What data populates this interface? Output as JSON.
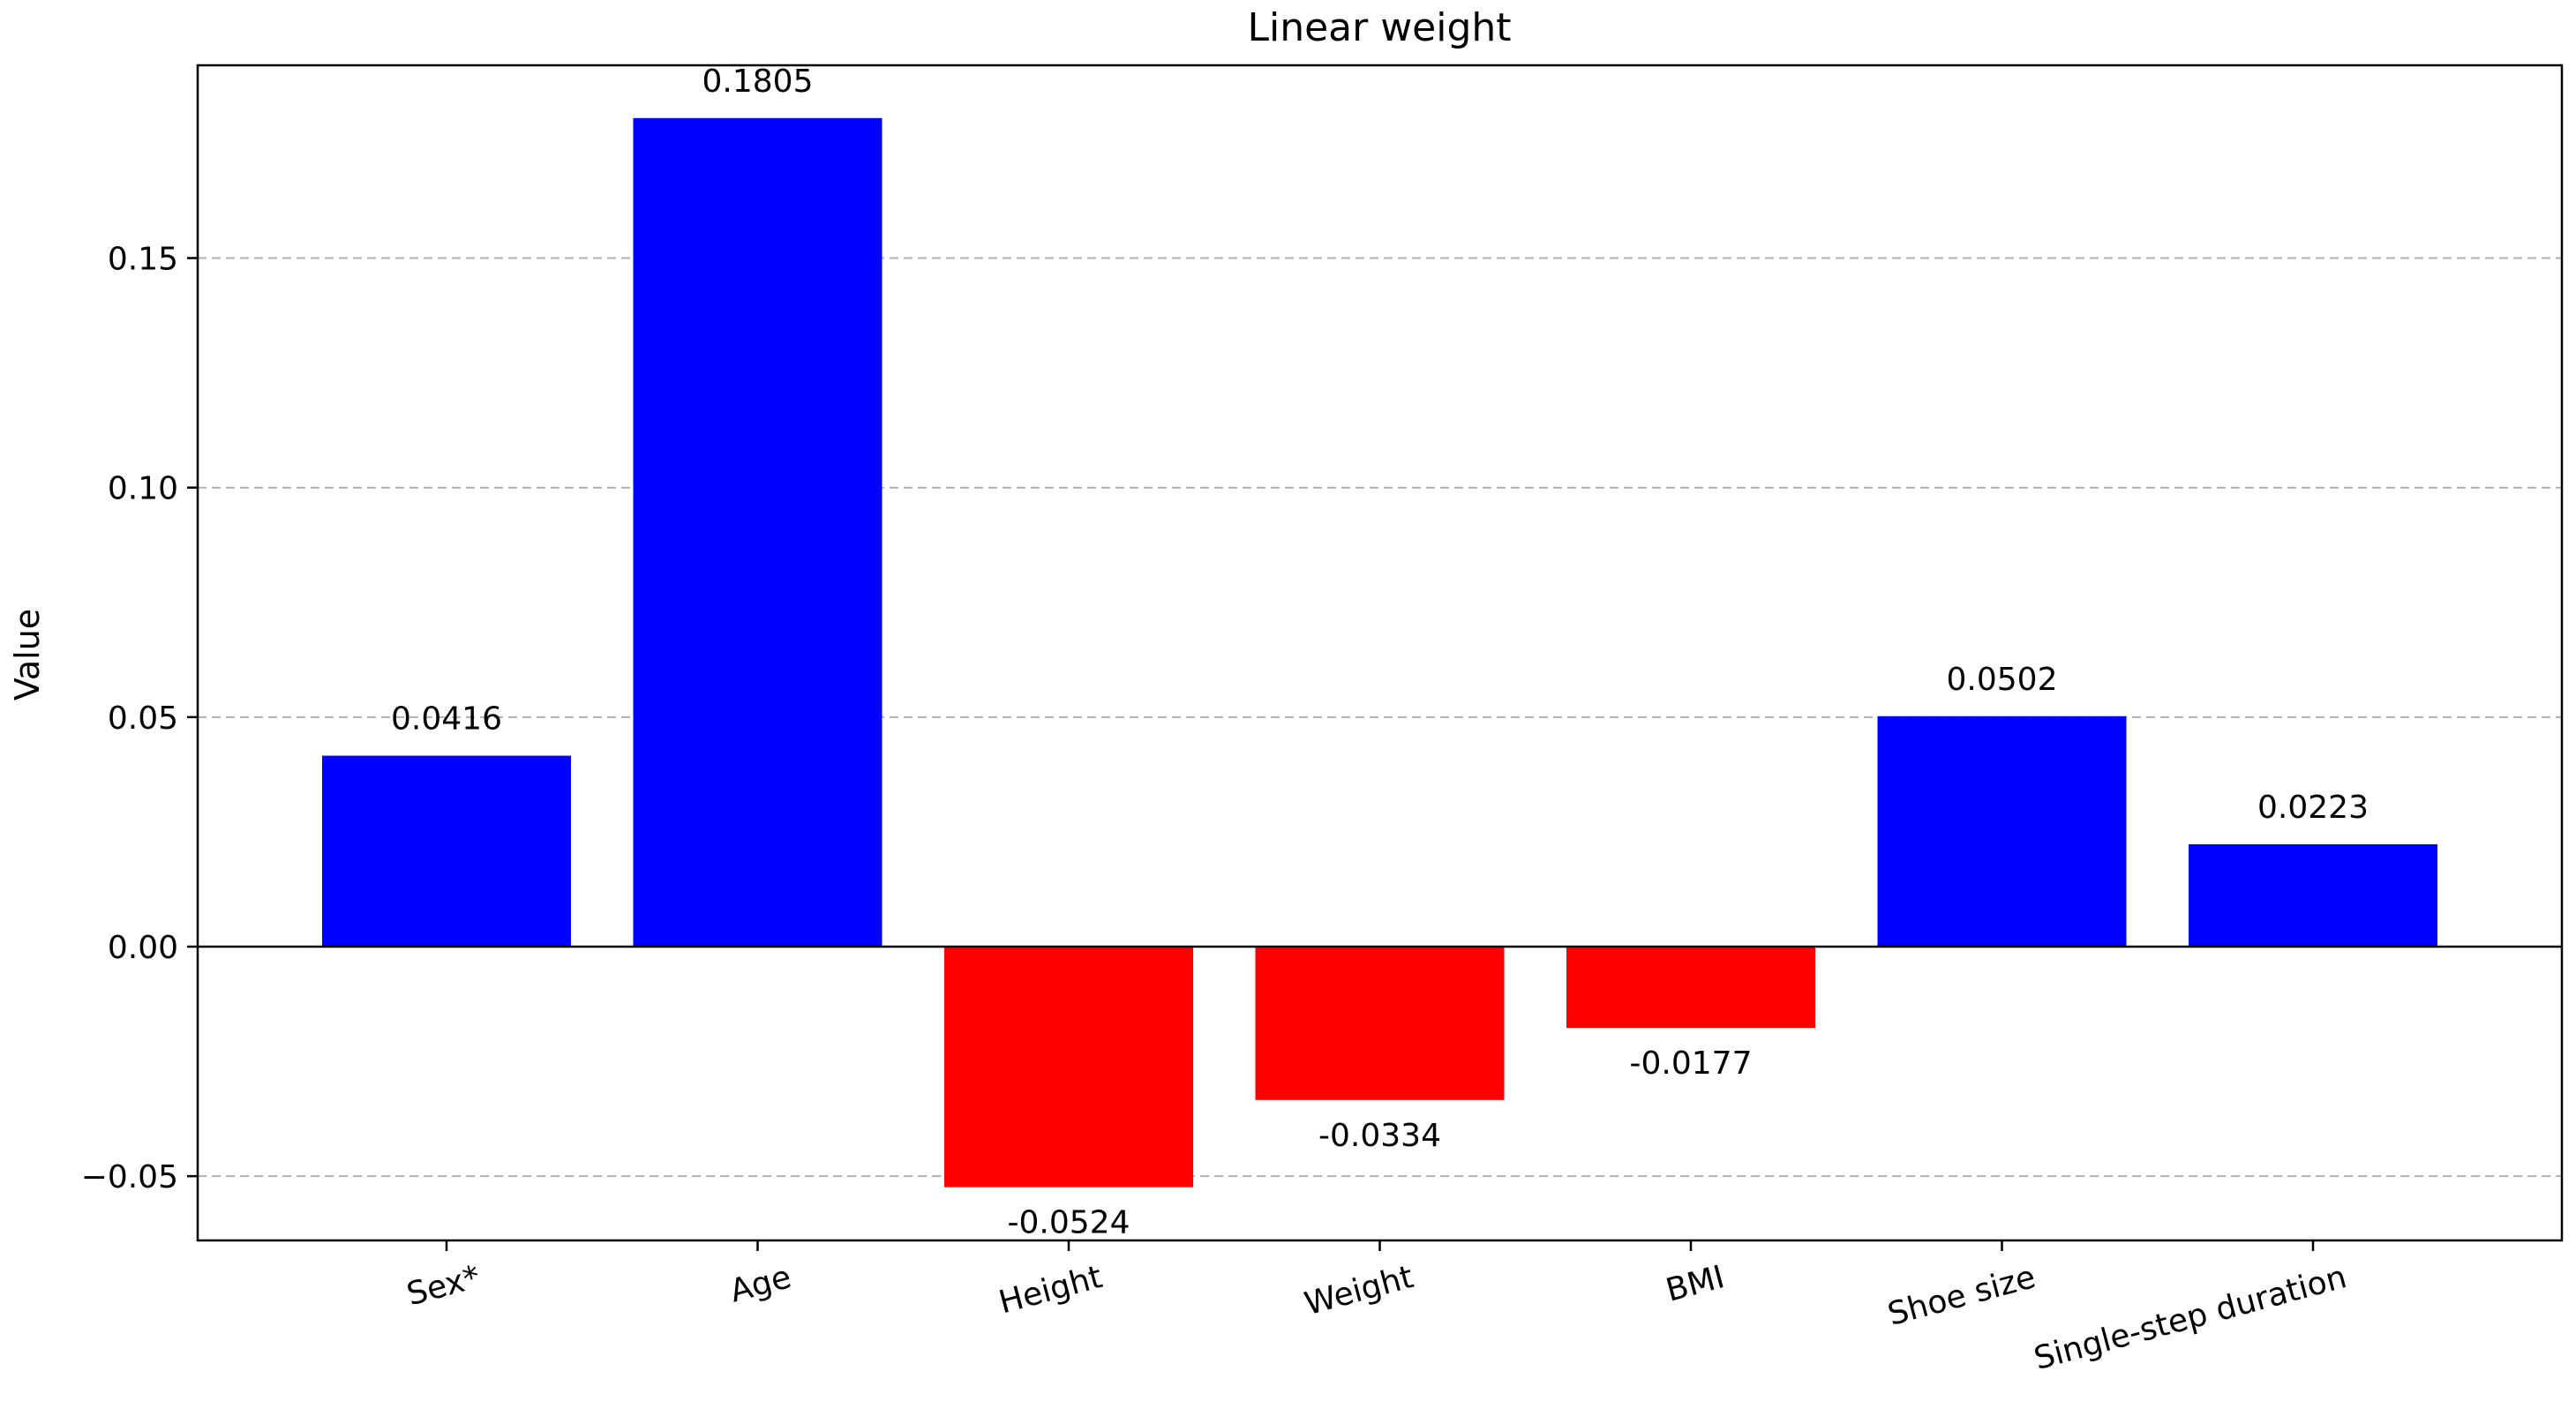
{
  "chart_data": {
    "type": "bar",
    "title": "Linear weight",
    "xlabel": "",
    "ylabel": "Value",
    "categories": [
      "Sex*",
      "Age",
      "Height",
      "Weight",
      "BMI",
      "Shoe size",
      "Single-step duration"
    ],
    "values": [
      0.0416,
      0.1805,
      -0.0524,
      -0.0334,
      -0.0177,
      0.0502,
      0.0223
    ],
    "value_labels": [
      "0.0416",
      "0.1805",
      "-0.0524",
      "-0.0334",
      "-0.0177",
      "0.0502",
      "0.0223"
    ],
    "ylim": [
      -0.064,
      0.192
    ],
    "yticks": [
      -0.05,
      0.0,
      0.05,
      0.1,
      0.15
    ],
    "ytick_labels": [
      "−0.05",
      "0.00",
      "0.05",
      "0.10",
      "0.15"
    ],
    "grid": "y, dashed",
    "baseline": 0,
    "colors": {
      "positive": "#0000ff",
      "negative": "#ff0000",
      "grid": "#b0b0b0"
    }
  }
}
